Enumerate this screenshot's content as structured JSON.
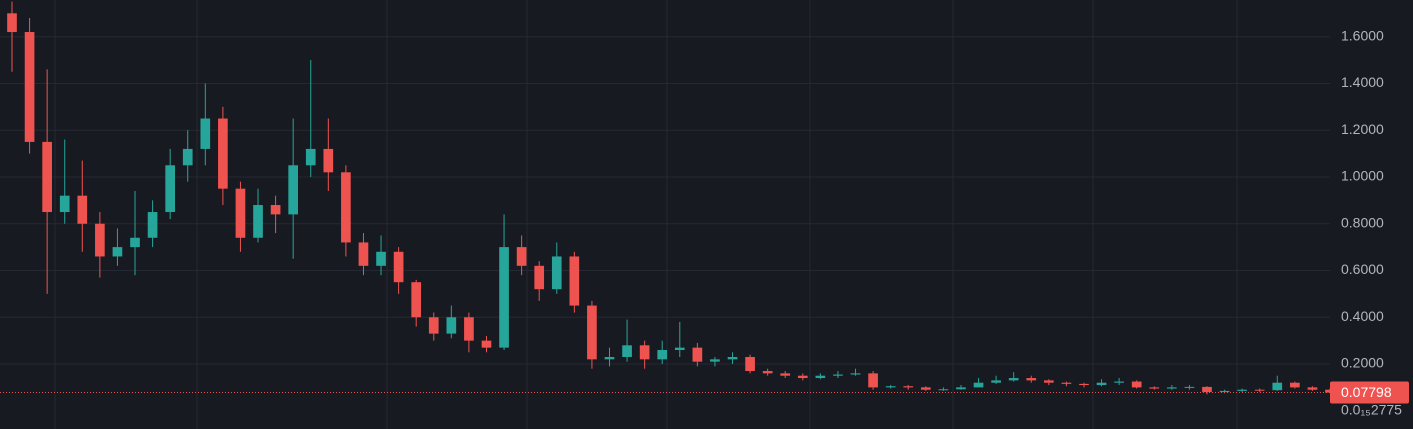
{
  "chart_data": {
    "type": "candlestick",
    "categories": [
      null,
      null,
      null,
      null,
      null,
      null,
      null,
      null,
      null,
      null,
      null,
      null,
      null,
      null,
      null,
      null,
      null,
      null,
      null,
      null,
      null,
      null,
      null,
      null,
      null,
      null,
      null,
      null,
      null,
      null,
      null,
      null,
      null,
      null,
      null,
      null,
      null,
      null,
      null,
      null,
      null,
      null,
      null,
      null,
      null,
      null,
      null,
      null,
      null,
      null,
      null,
      null,
      null,
      null,
      null,
      null,
      null,
      null,
      null,
      null,
      null,
      null,
      null,
      null,
      null,
      null,
      null,
      null,
      null,
      null,
      null,
      null,
      null,
      null,
      null,
      null
    ],
    "open": [
      1.7,
      1.62,
      1.15,
      0.85,
      0.92,
      0.8,
      0.66,
      0.7,
      0.74,
      0.85,
      1.05,
      1.12,
      1.25,
      0.95,
      0.74,
      0.88,
      0.84,
      1.05,
      1.12,
      1.02,
      0.72,
      0.62,
      0.68,
      0.55,
      0.4,
      0.33,
      0.4,
      0.3,
      0.27,
      0.7,
      0.62,
      0.52,
      0.66,
      0.45,
      0.22,
      0.23,
      0.28,
      0.22,
      0.26,
      0.27,
      0.21,
      0.22,
      0.23,
      0.17,
      0.16,
      0.15,
      0.14,
      0.15,
      0.155,
      0.16,
      0.1,
      0.105,
      0.1,
      0.09,
      0.092,
      0.1,
      0.12,
      0.13,
      0.14,
      0.13,
      0.12,
      0.115,
      0.11,
      0.12,
      0.125,
      0.1,
      0.095,
      0.1,
      0.102,
      0.08,
      0.085,
      0.09,
      0.088,
      0.12,
      0.1,
      0.09
    ],
    "high": [
      1.75,
      1.68,
      1.46,
      1.16,
      1.07,
      0.85,
      0.78,
      0.94,
      0.9,
      1.12,
      1.2,
      1.4,
      1.3,
      0.98,
      0.95,
      0.92,
      1.25,
      1.5,
      1.25,
      1.05,
      0.76,
      0.75,
      0.7,
      0.56,
      0.42,
      0.45,
      0.42,
      0.32,
      0.84,
      0.75,
      0.64,
      0.72,
      0.68,
      0.47,
      0.27,
      0.39,
      0.3,
      0.3,
      0.38,
      0.29,
      0.23,
      0.25,
      0.24,
      0.18,
      0.17,
      0.16,
      0.16,
      0.17,
      0.18,
      0.17,
      0.11,
      0.11,
      0.105,
      0.1,
      0.11,
      0.14,
      0.15,
      0.165,
      0.15,
      0.135,
      0.125,
      0.12,
      0.135,
      0.14,
      0.13,
      0.105,
      0.11,
      0.11,
      0.105,
      0.09,
      0.095,
      0.095,
      0.15,
      0.125,
      0.105,
      0.095
    ],
    "low": [
      1.45,
      1.1,
      0.5,
      0.8,
      0.68,
      0.57,
      0.62,
      0.58,
      0.7,
      0.82,
      0.98,
      1.05,
      0.88,
      0.68,
      0.72,
      0.76,
      0.65,
      1.0,
      0.94,
      0.66,
      0.58,
      0.58,
      0.5,
      0.36,
      0.3,
      0.31,
      0.25,
      0.25,
      0.26,
      0.58,
      0.47,
      0.5,
      0.42,
      0.18,
      0.19,
      0.21,
      0.18,
      0.2,
      0.23,
      0.19,
      0.19,
      0.2,
      0.16,
      0.15,
      0.14,
      0.13,
      0.135,
      0.14,
      0.15,
      0.09,
      0.095,
      0.09,
      0.085,
      0.085,
      0.09,
      0.1,
      0.115,
      0.125,
      0.12,
      0.11,
      0.105,
      0.1,
      0.105,
      0.11,
      0.095,
      0.09,
      0.09,
      0.09,
      0.07,
      0.075,
      0.08,
      0.08,
      0.085,
      0.095,
      0.085,
      0.075
    ],
    "close": [
      1.62,
      1.15,
      0.85,
      0.92,
      0.8,
      0.66,
      0.7,
      0.74,
      0.85,
      1.05,
      1.12,
      1.25,
      0.95,
      0.74,
      0.88,
      0.84,
      1.05,
      1.12,
      1.02,
      0.72,
      0.62,
      0.68,
      0.55,
      0.4,
      0.33,
      0.4,
      0.3,
      0.27,
      0.7,
      0.62,
      0.52,
      0.66,
      0.45,
      0.22,
      0.23,
      0.28,
      0.22,
      0.26,
      0.27,
      0.21,
      0.22,
      0.23,
      0.17,
      0.16,
      0.15,
      0.14,
      0.15,
      0.155,
      0.16,
      0.1,
      0.105,
      0.1,
      0.09,
      0.092,
      0.1,
      0.12,
      0.13,
      0.14,
      0.13,
      0.12,
      0.115,
      0.11,
      0.12,
      0.125,
      0.1,
      0.095,
      0.1,
      0.102,
      0.08,
      0.085,
      0.09,
      0.088,
      0.12,
      0.1,
      0.09,
      0.07798
    ],
    "up_color": "#26a69a",
    "down_color": "#ef5350",
    "ylim": [
      -0.078,
      1.757
    ],
    "yticks": [
      {
        "value": 2.775e-16,
        "label": "0.0₁₅2775"
      },
      {
        "value": 0.2,
        "label": "0.2000"
      },
      {
        "value": 0.4,
        "label": "0.4000"
      },
      {
        "value": 0.6,
        "label": "0.6000"
      },
      {
        "value": 0.8,
        "label": "0.8000"
      },
      {
        "value": 1.0,
        "label": "1.0000"
      },
      {
        "value": 1.2,
        "label": "1.2000"
      },
      {
        "value": 1.4,
        "label": "1.4000"
      },
      {
        "value": 1.6,
        "label": "1.6000"
      }
    ],
    "grid": true,
    "last_price": 0.07798
  }
}
